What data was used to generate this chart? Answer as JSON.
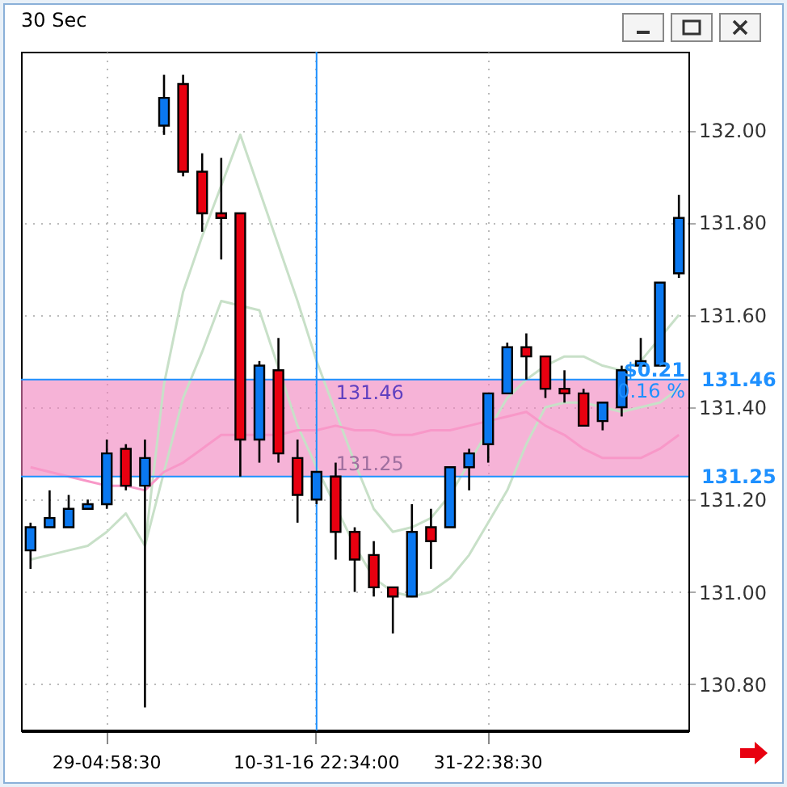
{
  "chart_data": {
    "type": "candlestick",
    "title": "30 Sec",
    "categories": [
      null,
      null,
      null,
      null,
      "29-04:58:30",
      null,
      null,
      null,
      null,
      null,
      null,
      null,
      null,
      null,
      null,
      "10-31-16 22:34:00",
      null,
      null,
      null,
      null,
      null,
      null,
      null,
      null,
      "31-22:38:30",
      null,
      null,
      null,
      null,
      null,
      null,
      null,
      null,
      null,
      null
    ],
    "ohlc": [
      [
        131.09,
        131.15,
        131.05,
        131.14
      ],
      [
        131.14,
        131.22,
        131.14,
        131.16
      ],
      [
        131.14,
        131.21,
        131.14,
        131.18
      ],
      [
        131.18,
        131.2,
        131.18,
        131.19
      ],
      [
        131.19,
        131.33,
        131.18,
        131.3
      ],
      [
        131.31,
        131.32,
        131.22,
        131.23
      ],
      [
        131.23,
        131.33,
        130.75,
        131.29
      ],
      [
        132.01,
        132.12,
        131.99,
        132.07
      ],
      [
        132.1,
        132.12,
        131.9,
        131.91
      ],
      [
        131.91,
        131.95,
        131.78,
        131.82
      ],
      [
        131.82,
        131.94,
        131.72,
        131.81
      ],
      [
        131.82,
        131.82,
        131.25,
        131.33
      ],
      [
        131.33,
        131.5,
        131.28,
        131.49
      ],
      [
        131.48,
        131.55,
        131.28,
        131.3
      ],
      [
        131.29,
        131.33,
        131.15,
        131.21
      ],
      [
        131.2,
        131.26,
        131.19,
        131.26
      ],
      [
        131.25,
        131.28,
        131.07,
        131.13
      ],
      [
        131.13,
        131.14,
        131.0,
        131.07
      ],
      [
        131.08,
        131.11,
        130.99,
        131.01
      ],
      [
        131.01,
        131.01,
        130.91,
        130.99
      ],
      [
        130.99,
        131.19,
        130.99,
        131.13
      ],
      [
        131.14,
        131.18,
        131.05,
        131.11
      ],
      [
        131.14,
        131.27,
        131.14,
        131.27
      ],
      [
        131.27,
        131.31,
        131.22,
        131.3
      ],
      [
        131.32,
        131.43,
        131.28,
        131.43
      ],
      [
        131.43,
        131.54,
        131.43,
        131.53
      ],
      [
        131.53,
        131.56,
        131.46,
        131.51
      ],
      [
        131.51,
        131.51,
        131.42,
        131.44
      ],
      [
        131.44,
        131.48,
        131.41,
        131.43
      ],
      [
        131.43,
        131.44,
        131.36,
        131.36
      ],
      [
        131.37,
        131.41,
        131.35,
        131.41
      ],
      [
        131.4,
        131.49,
        131.38,
        131.48
      ],
      [
        131.49,
        131.55,
        131.48,
        131.5
      ],
      [
        131.49,
        131.67,
        131.49,
        131.67
      ],
      [
        131.69,
        131.86,
        131.68,
        131.81
      ]
    ],
    "colors": [
      "#0a78f0",
      "#0a78f0",
      "#0a78f0",
      "#0a78f0",
      "#0a78f0",
      "#e80010",
      "#0a78f0",
      "#0a78f0",
      "#e80010",
      "#e80010",
      "#e80010",
      "#e80010",
      "#0a78f0",
      "#e80010",
      "#e80010",
      "#0a78f0",
      "#e80010",
      "#e80010",
      "#e80010",
      "#e80010",
      "#0a78f0",
      "#e80010",
      "#0a78f0",
      "#0a78f0",
      "#0a78f0",
      "#0a78f0",
      "#e80010",
      "#e80010",
      "#e80010",
      "#e80010",
      "#0a78f0",
      "#0a78f0",
      "#0a78f0",
      "#0a78f0",
      "#0a78f0"
    ],
    "series": [
      {
        "type": "line",
        "color": "#c8e0c8",
        "values": [
          131.07,
          131.08,
          131.09,
          131.1,
          131.13,
          131.17,
          131.1,
          131.45,
          131.65,
          131.77,
          131.88,
          131.99,
          131.87,
          131.75,
          131.63,
          131.5,
          131.39,
          131.28,
          131.18,
          131.13,
          131.14,
          131.16,
          131.21,
          131.28,
          null,
          131.42,
          131.46,
          131.49,
          131.51,
          131.51,
          131.49,
          131.48,
          131.5,
          null,
          131.6
        ]
      },
      {
        "type": "line",
        "color": "#c8e0c8",
        "values": [
          null,
          null,
          null,
          null,
          null,
          null,
          131.1,
          131.26,
          131.42,
          131.52,
          131.63,
          null,
          131.61,
          null,
          131.36,
          131.27,
          null,
          131.1,
          131.03,
          131.0,
          130.99,
          131.0,
          131.03,
          131.08,
          131.15,
          131.22,
          131.32,
          131.4,
          131.41,
          131.41,
          131.4,
          131.39,
          131.4,
          131.41,
          131.44
        ]
      },
      {
        "type": "line",
        "color": "#f898c8",
        "values": [
          131.27,
          131.26,
          131.25,
          131.24,
          131.23,
          131.23,
          131.22,
          131.26,
          131.28,
          131.31,
          131.34,
          131.34,
          131.34,
          131.34,
          131.35,
          131.35,
          131.36,
          131.35,
          131.35,
          131.34,
          131.34,
          131.35,
          131.35,
          131.36,
          131.37,
          131.38,
          131.39,
          131.36,
          131.34,
          131.31,
          131.29,
          131.29,
          131.29,
          131.31,
          131.34
        ]
      }
    ],
    "ylim": [
      130.7,
      132.17
    ],
    "yticks": [
      {
        "value": 130.8,
        "label": "130.80"
      },
      {
        "value": 131,
        "label": "131.00"
      },
      {
        "value": 131.2,
        "label": "131.20"
      },
      {
        "value": 131.4,
        "label": "131.40"
      },
      {
        "value": 131.6,
        "label": "131.60"
      },
      {
        "value": 131.8,
        "label": "131.80"
      },
      {
        "value": 132,
        "label": "132.00"
      }
    ],
    "grid": true,
    "ref_lines": [
      {
        "axis": "y",
        "value": 131.25,
        "label": "131.25",
        "color": "#1e90ff"
      },
      {
        "axis": "y",
        "value": 131.46,
        "label": "131.46",
        "color": "#1e90ff"
      },
      {
        "axis": "x",
        "value": "10-31-16 22:34:00",
        "color": "#1e90ff"
      }
    ],
    "bands": [
      {
        "axis": "y",
        "from": 131.25,
        "to": 131.46,
        "label": "131.46",
        "color": "#f080bc"
      }
    ],
    "annotations": [
      "$0.21",
      "0.16 %",
      {
        "text": "131.25",
        "y": 131.25
      }
    ]
  }
}
